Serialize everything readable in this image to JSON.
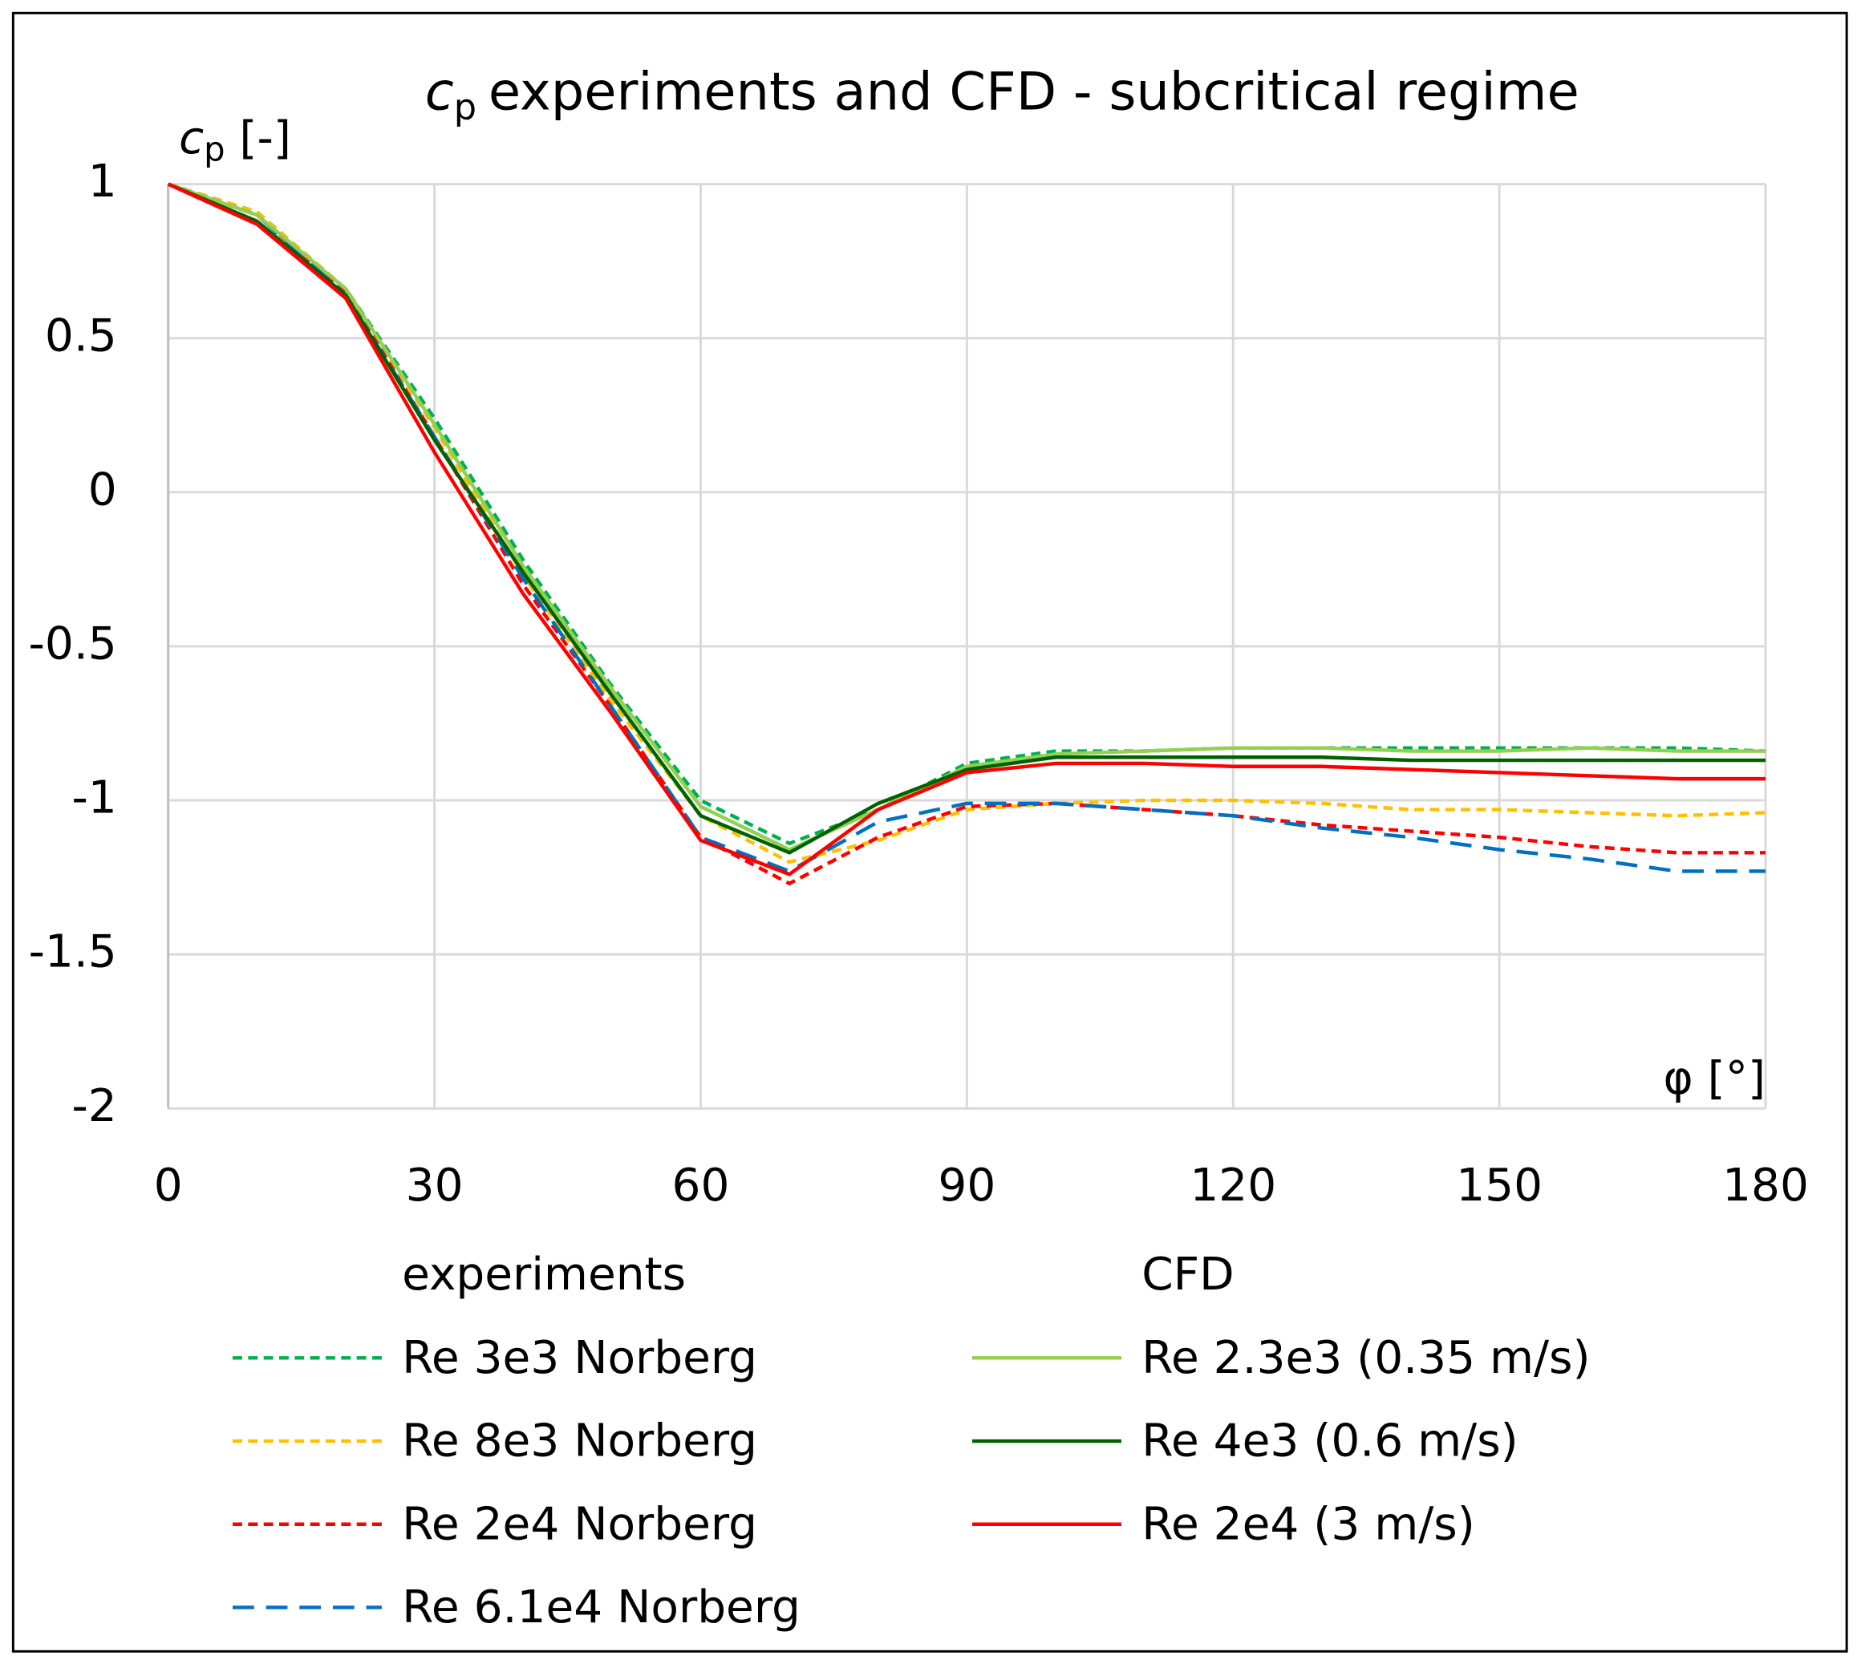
{
  "chart_data": {
    "type": "line",
    "title_symbol": "c",
    "title_subscript": "p",
    "title_text": "experiments and CFD - subcritical regime",
    "y_label_symbol": "c",
    "y_label_subscript": "p",
    "y_label_unit": "[-]",
    "x_label": "φ [°]",
    "x": [
      0,
      10,
      20,
      30,
      40,
      50,
      60,
      70,
      80,
      90,
      100,
      110,
      120,
      130,
      140,
      150,
      160,
      170,
      180
    ],
    "xlim": [
      0,
      180
    ],
    "xticks": [
      0,
      30,
      60,
      90,
      120,
      150,
      180
    ],
    "ylim": [
      -2,
      1
    ],
    "yticks": [
      -2,
      -1.5,
      -1,
      -0.5,
      0,
      0.5,
      1
    ],
    "grid": true,
    "legend_titles": [
      "experiments",
      "CFD"
    ],
    "series": [
      {
        "name": "Re 3e3 Norberg",
        "color": "#00b050",
        "dash": "short",
        "values": [
          1,
          0.91,
          0.66,
          0.24,
          -0.22,
          -0.63,
          -1.0,
          -1.14,
          -1.03,
          -0.88,
          -0.84,
          -0.84,
          -0.83,
          -0.83,
          -0.83,
          -0.83,
          -0.83,
          -0.83,
          -0.84
        ]
      },
      {
        "name": "Re 8e3 Norberg",
        "color": "#ffc000",
        "dash": "short",
        "values": [
          1,
          0.91,
          0.66,
          0.21,
          -0.27,
          -0.68,
          -1.05,
          -1.2,
          -1.13,
          -1.03,
          -1.01,
          -1.0,
          -1.0,
          -1.01,
          -1.03,
          -1.03,
          -1.04,
          -1.05,
          -1.04
        ]
      },
      {
        "name": "Re 2e4 Norberg",
        "color": "#ff0000",
        "dash": "short",
        "values": [
          1,
          0.9,
          0.65,
          0.18,
          -0.3,
          -0.7,
          -1.12,
          -1.27,
          -1.12,
          -1.02,
          -1.01,
          -1.03,
          -1.05,
          -1.08,
          -1.1,
          -1.12,
          -1.15,
          -1.17,
          -1.17
        ]
      },
      {
        "name": "Re 6.1e4 Norberg",
        "color": "#0070c0",
        "dash": "long",
        "values": [
          1,
          0.9,
          0.64,
          0.18,
          -0.28,
          -0.7,
          -1.12,
          -1.23,
          -1.07,
          -1.01,
          -1.01,
          -1.03,
          -1.05,
          -1.09,
          -1.12,
          -1.16,
          -1.19,
          -1.23,
          -1.23
        ]
      },
      {
        "name": "Re 2.3e3 (0.35 m/s)",
        "color": "#92d050",
        "dash": "solid",
        "values": [
          1,
          0.9,
          0.66,
          0.22,
          -0.24,
          -0.64,
          -1.02,
          -1.16,
          -1.03,
          -0.89,
          -0.85,
          -0.84,
          -0.83,
          -0.83,
          -0.84,
          -0.84,
          -0.83,
          -0.84,
          -0.84
        ]
      },
      {
        "name": "Re 4e3 (0.6 m/s)",
        "color": "#006100",
        "dash": "solid",
        "values": [
          1,
          0.88,
          0.64,
          0.17,
          -0.26,
          -0.66,
          -1.05,
          -1.17,
          -1.01,
          -0.9,
          -0.86,
          -0.86,
          -0.86,
          -0.86,
          -0.87,
          -0.87,
          -0.87,
          -0.87,
          -0.87
        ]
      },
      {
        "name": "Re 2e4 (3 m/s)",
        "color": "#ff0000",
        "dash": "solid",
        "values": [
          1,
          0.87,
          0.63,
          0.13,
          -0.33,
          -0.72,
          -1.13,
          -1.24,
          -1.03,
          -0.91,
          -0.88,
          -0.88,
          -0.89,
          -0.89,
          -0.9,
          -0.91,
          -0.92,
          -0.93,
          -0.93
        ]
      }
    ]
  }
}
